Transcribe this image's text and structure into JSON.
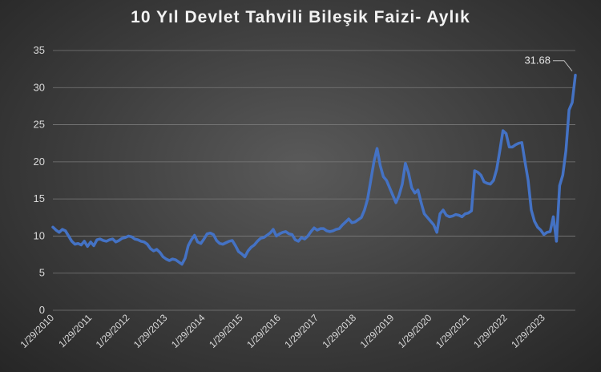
{
  "chart_data": {
    "type": "line",
    "title": "10 Yıl Devlet Tahvili Bileşik Faizi- Aylık",
    "xlabel": "",
    "ylabel": "",
    "ylim": [
      0,
      35
    ],
    "yticks": [
      0,
      5,
      10,
      15,
      20,
      25,
      30,
      35
    ],
    "xtick_labels": [
      "1/29/2010",
      "1/29/2011",
      "1/29/2012",
      "1/29/2013",
      "1/29/2014",
      "1/29/2015",
      "1/29/2016",
      "1/29/2017",
      "1/29/2018",
      "1/29/2019",
      "1/29/2020",
      "1/29/2021",
      "1/29/2022",
      "1/29/2023"
    ],
    "grid": true,
    "legend": "none",
    "line_color": "#4472c4",
    "annotation": {
      "label": "31.68",
      "x": "2023-12",
      "y": 31.68
    },
    "x_start": "2010-01",
    "x_step": "month",
    "values": [
      11.2,
      10.8,
      10.5,
      10.9,
      10.7,
      10.0,
      9.3,
      8.9,
      9.0,
      8.8,
      9.3,
      8.6,
      9.2,
      8.7,
      9.5,
      9.6,
      9.4,
      9.3,
      9.5,
      9.6,
      9.2,
      9.4,
      9.7,
      9.8,
      10.0,
      9.9,
      9.6,
      9.5,
      9.3,
      9.2,
      8.9,
      8.3,
      8.0,
      8.2,
      7.8,
      7.2,
      6.9,
      6.7,
      6.9,
      6.8,
      6.5,
      6.2,
      7.0,
      8.7,
      9.5,
      10.1,
      9.2,
      9.0,
      9.6,
      10.3,
      10.4,
      10.2,
      9.4,
      9.0,
      8.9,
      9.1,
      9.3,
      9.4,
      8.7,
      7.9,
      7.6,
      7.2,
      8.0,
      8.5,
      8.8,
      9.3,
      9.7,
      9.8,
      10.1,
      10.4,
      10.9,
      10.0,
      10.3,
      10.5,
      10.6,
      10.3,
      10.2,
      9.5,
      9.3,
      9.8,
      9.6,
      10.0,
      10.6,
      11.1,
      10.8,
      11.0,
      11.0,
      10.7,
      10.6,
      10.7,
      10.9,
      11.0,
      11.5,
      11.9,
      12.3,
      11.8,
      11.9,
      12.2,
      12.5,
      13.5,
      15.0,
      17.5,
      20.0,
      21.8,
      19.5,
      18.0,
      17.5,
      16.5,
      15.5,
      14.5,
      15.5,
      17.0,
      19.8,
      18.5,
      16.5,
      15.8,
      16.2,
      14.5,
      13.0,
      12.5,
      12.0,
      11.5,
      10.5,
      13.0,
      13.5,
      12.8,
      12.6,
      12.7,
      12.9,
      12.8,
      12.6,
      13.0,
      13.1,
      13.4,
      18.8,
      18.6,
      18.2,
      17.3,
      17.1,
      17.0,
      17.5,
      19.0,
      21.5,
      24.2,
      23.8,
      22.0,
      22.0,
      22.3,
      22.5,
      22.6,
      20.0,
      17.5,
      13.5,
      12.0,
      11.2,
      10.8,
      10.2,
      10.5,
      10.6,
      12.6,
      9.3,
      16.8,
      18.2,
      21.5,
      27.0,
      28.0,
      31.68
    ]
  }
}
